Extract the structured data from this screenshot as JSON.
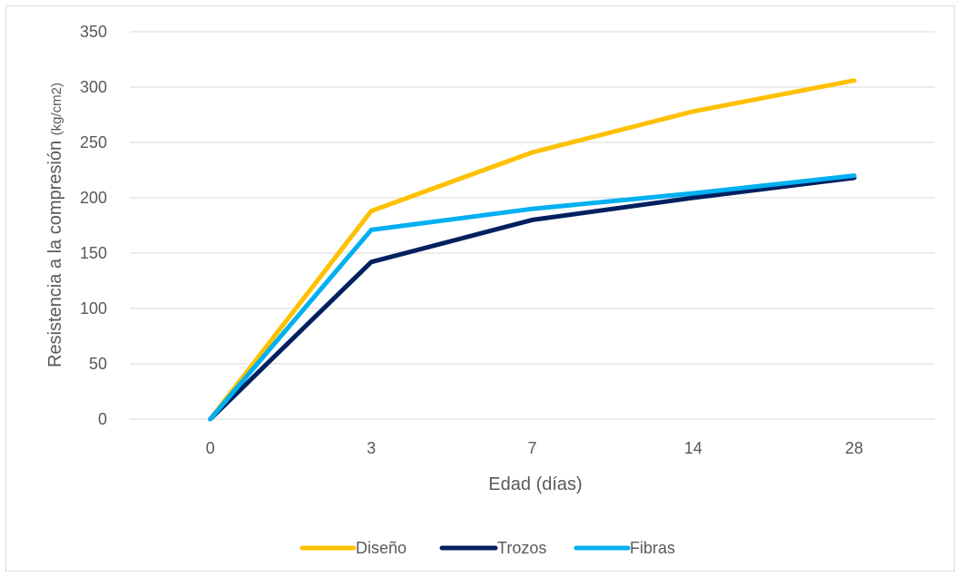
{
  "chart_data": {
    "type": "line",
    "categories": [
      "0",
      "3",
      "7",
      "14",
      "28"
    ],
    "series": [
      {
        "name": "Diseño",
        "values": [
          0,
          188,
          241,
          278,
          306
        ],
        "color": "#FFC000"
      },
      {
        "name": "Trozos",
        "values": [
          0,
          142,
          180,
          200,
          218
        ],
        "color": "#002060"
      },
      {
        "name": "Fibras",
        "values": [
          0,
          171,
          190,
          204,
          220
        ],
        "color": "#00B0F0"
      }
    ],
    "yticks": [
      "0",
      "50",
      "100",
      "150",
      "200",
      "250",
      "300",
      "350"
    ],
    "ylim": [
      0,
      350
    ],
    "xlabel": "Edad (días)",
    "ylabel_main": "Resistencia a la compresión",
    "ylabel_unit": "(kg/cm2)",
    "grid": true,
    "legend_position": "bottom"
  }
}
